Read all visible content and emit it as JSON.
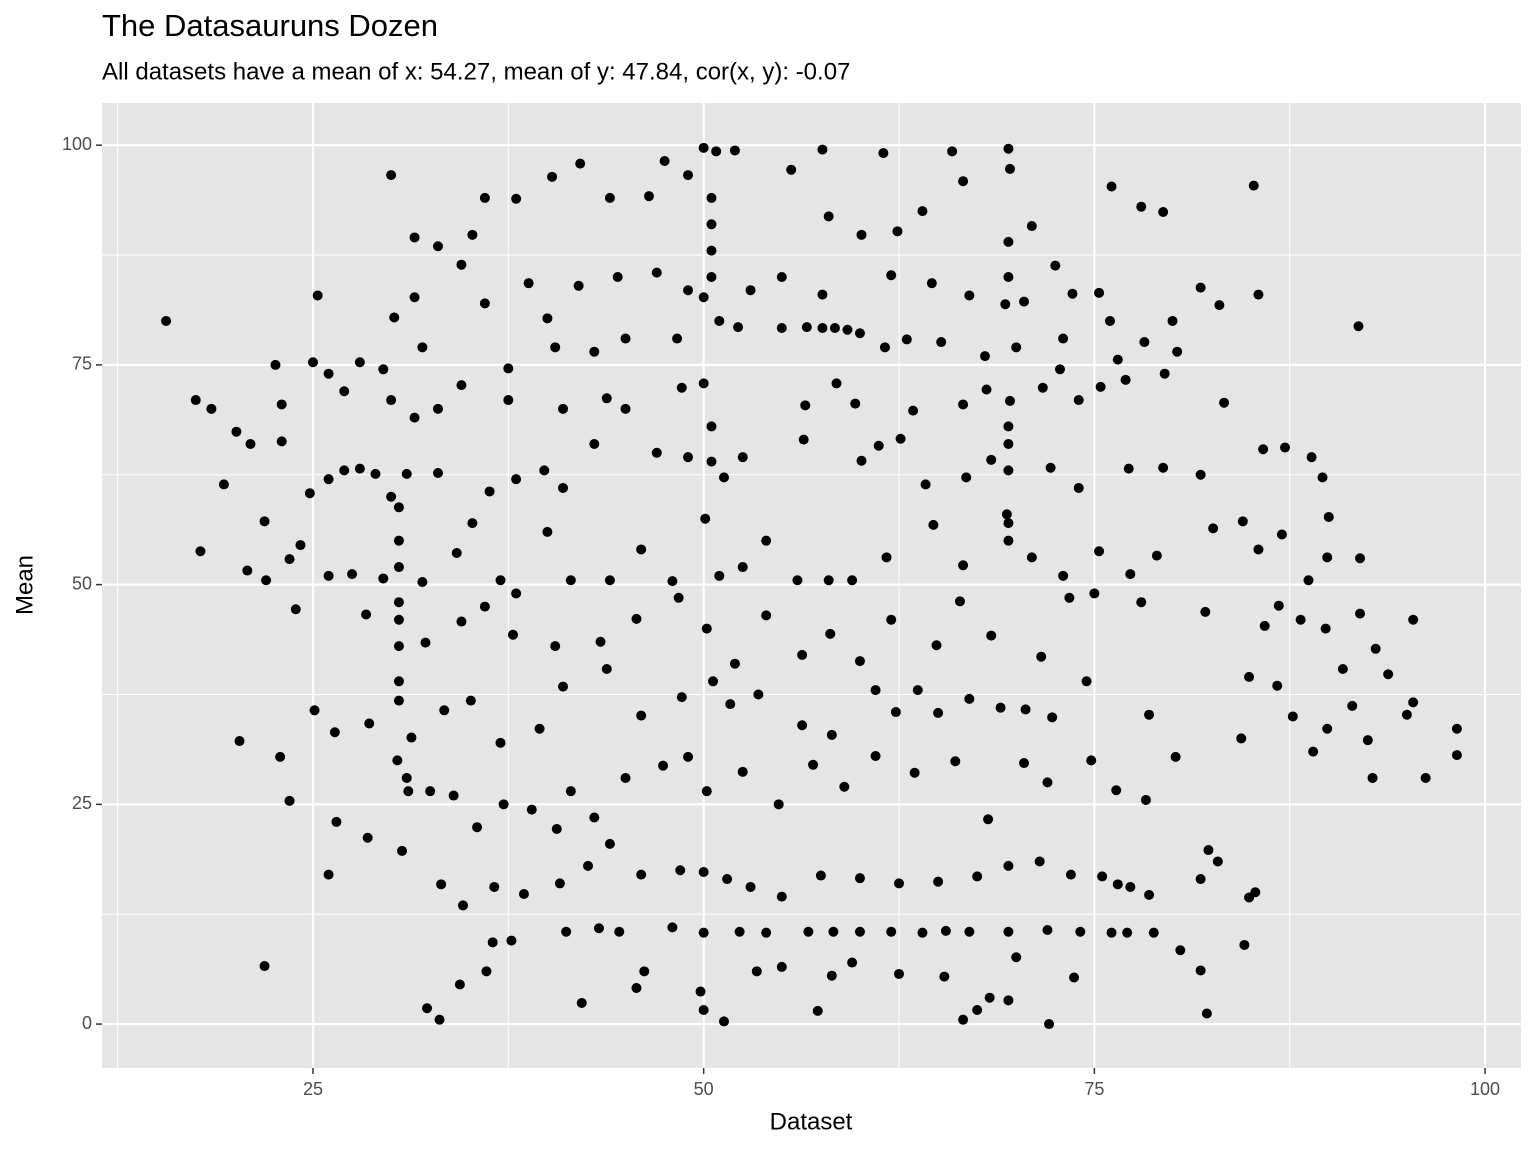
{
  "chart_data": {
    "type": "scatter",
    "title": "The Datasauruns Dozen",
    "subtitle": "All datasets have a mean of x: 54.27, mean of y: 47.84, cor(x, y): -0.07",
    "x_label": "Dataset",
    "y_label": "Mean",
    "color": "#000000",
    "xlim": [
      11.5,
      102.3
    ],
    "ylim": [
      -5.0,
      104.8
    ],
    "xticks": [
      25,
      50,
      75,
      100
    ],
    "yticks": [
      0,
      25,
      50,
      75,
      100
    ],
    "xminor": [
      12.5,
      37.5,
      62.5,
      87.5
    ],
    "yminor": [
      12.5,
      37.5,
      62.5,
      87.5
    ],
    "grid": true,
    "x": [
      15.6,
      17.5,
      17.8,
      21.9,
      20.3,
      23.5,
      85.2,
      91.9,
      98.2,
      98.2,
      96.2,
      95.4,
      95.4,
      30,
      42.1,
      50,
      50.8,
      52,
      55.6,
      57.6,
      61.5,
      65.9,
      69.5,
      69.6,
      76.1,
      78,
      79.4,
      36,
      38,
      40.3,
      44,
      46.5,
      47.5,
      49,
      58,
      60.1,
      62.4,
      64,
      66.6,
      71,
      72.5,
      34.5,
      31.5,
      33,
      35.2,
      25.3,
      30.2,
      31.5,
      36,
      38.8,
      40,
      42,
      44.5,
      47,
      49,
      50,
      51,
      53,
      55,
      57.6,
      60,
      62,
      64.6,
      67,
      69.3,
      70.5,
      73.6,
      75.3,
      76,
      80,
      81.8,
      83,
      85.5,
      22.6,
      25,
      26,
      28,
      29.5,
      32,
      37.5,
      40.5,
      43,
      45,
      48.3,
      52.2,
      55,
      56.6,
      57.6,
      58.4,
      59.2,
      61.6,
      63,
      65.2,
      68,
      70,
      73,
      76.5,
      78.2,
      80.3,
      18.5,
      23,
      27,
      30,
      31.5,
      33,
      34.5,
      37.5,
      41,
      43.8,
      45,
      48.6,
      50,
      56.5,
      58.5,
      59.7,
      63.4,
      66.6,
      68.1,
      69.6,
      71.7,
      72.8,
      74,
      75.4,
      77,
      79.5,
      83.3,
      20.1,
      21,
      23,
      24.8,
      26,
      27,
      28,
      29,
      30,
      31,
      33,
      36.3,
      38,
      39.8,
      41,
      43,
      47,
      49,
      51.3,
      52.5,
      56.4,
      60.1,
      61.2,
      62.6,
      64.2,
      66.8,
      68.4,
      69.5,
      72.2,
      74,
      77.2,
      79.4,
      81.8,
      85.8,
      87.2,
      88.9,
      89.6,
      19.3,
      21.9,
      20.8,
      22,
      23.5,
      24.2,
      26,
      27.5,
      29.5,
      30.5,
      32,
      34.2,
      35.2,
      37,
      38,
      40,
      41.5,
      44,
      46,
      48,
      50.1,
      51,
      52.5,
      54,
      56,
      58,
      59.5,
      61.7,
      64.7,
      66.6,
      69.4,
      71,
      73,
      75.3,
      77.3,
      79,
      82.6,
      84.5,
      85.5,
      87,
      88.7,
      89.9,
      92,
      90,
      23.9,
      28.4,
      30.5,
      32.2,
      34.5,
      36,
      37.8,
      40.5,
      43.4,
      45.7,
      48.4,
      50.2,
      52,
      54,
      56.3,
      58.1,
      60,
      62,
      64.9,
      66.4,
      68.4,
      71.6,
      73.4,
      75,
      78,
      82.1,
      85.9,
      86.8,
      88.2,
      89.8,
      90.9,
      92,
      93,
      25.1,
      26.4,
      28.6,
      30.4,
      31.3,
      33.4,
      35.1,
      37,
      39.5,
      41,
      43.8,
      46,
      48.6,
      50.6,
      51.7,
      53.5,
      56.3,
      58.2,
      61,
      62.3,
      63.7,
      65,
      67,
      69,
      70.6,
      72.3,
      74.5,
      78.5,
      84.9,
      86.7,
      87.7,
      89.9,
      91.5,
      92.5,
      93.8,
      95,
      22.9,
      26.5,
      28.5,
      30.7,
      31.1,
      32.5,
      34,
      35.5,
      37.2,
      39,
      40.6,
      41.5,
      43,
      45,
      47.4,
      49,
      50.2,
      52.5,
      54.8,
      57,
      59,
      61,
      63.5,
      66.1,
      68.2,
      70.5,
      72,
      74.8,
      76.4,
      78.3,
      80.2,
      84.4,
      89,
      92.8,
      26,
      31,
      33.2,
      34.6,
      36.6,
      38.5,
      40.8,
      42.6,
      44,
      46,
      48.5,
      50,
      51.5,
      53,
      55,
      57.5,
      60,
      62.5,
      65,
      67.5,
      69.5,
      71.5,
      73.5,
      75.5,
      76.5,
      77.3,
      78.5,
      81.8,
      82.3,
      82.9,
      85.3,
      84.9,
      41.2,
      44.6,
      48,
      50,
      52.3,
      54,
      56.7,
      58.3,
      60,
      62,
      64,
      65.5,
      67,
      69.5,
      72,
      74.1,
      76.1,
      77.1,
      78.8,
      80.5,
      81.8,
      82.2,
      32.3,
      33.1,
      34.4,
      36.1,
      42.2,
      45.7,
      46.2,
      49.8,
      50,
      51.3,
      53.4,
      55,
      57.3,
      58.2,
      59.5,
      62.5,
      65.4,
      66.6,
      67.5,
      68.3,
      69.5,
      70,
      72.1,
      73.7,
      84.6,
      36.5,
      37.7,
      43.3,
      30.5,
      30.5,
      30.5,
      30.5,
      30.5,
      30.5,
      50.5,
      50.5,
      50.5,
      50.5,
      50.5,
      50.5,
      69.5,
      69.5,
      69.5,
      69.5,
      69.5,
      69.5
    ],
    "y": [
      80,
      71,
      53.8,
      6.6,
      32.2,
      25.4,
      95.4,
      79.4,
      33.6,
      30.6,
      28,
      46,
      36.6,
      96.6,
      97.9,
      99.7,
      99.3,
      99.4,
      97.2,
      99.5,
      99.1,
      99.3,
      99.6,
      97.3,
      95.3,
      93,
      92.4,
      94,
      93.9,
      96.4,
      94,
      94.2,
      98.2,
      96.6,
      91.9,
      89.8,
      90.2,
      92.5,
      95.9,
      90.8,
      86.3,
      86.4,
      89.5,
      88.5,
      89.8,
      82.9,
      80.4,
      82.7,
      82,
      84.3,
      80.3,
      84,
      85,
      85.5,
      83.5,
      82.7,
      80,
      83.5,
      85,
      83,
      78.6,
      85.2,
      84.3,
      82.9,
      81.9,
      82.2,
      83.1,
      83.2,
      80,
      80,
      83.8,
      81.8,
      83,
      75,
      75.3,
      74,
      75.3,
      74.5,
      77,
      74.6,
      77,
      76.5,
      78,
      78,
      79.3,
      79.2,
      79.3,
      79.2,
      79.2,
      79,
      77,
      77.9,
      77.6,
      76,
      77,
      78,
      75.6,
      77.6,
      76.5,
      70,
      70.5,
      72,
      71,
      69,
      70,
      72.7,
      71,
      70,
      71.2,
      70,
      72.4,
      72.9,
      70.4,
      72.9,
      70.6,
      69.8,
      70.5,
      72.2,
      70.9,
      72.4,
      74.5,
      71,
      72.5,
      73.3,
      74,
      70.7,
      67.4,
      66,
      66.3,
      60.4,
      62,
      63,
      63.2,
      62.6,
      60,
      62.6,
      62.7,
      60.6,
      62,
      63,
      61,
      66,
      65,
      64.5,
      62.2,
      64.5,
      66.5,
      64.1,
      65.8,
      66.6,
      61.4,
      62.2,
      64.2,
      63,
      63.3,
      61,
      63.2,
      63.3,
      62.5,
      65.4,
      65.6,
      64.5,
      62.2,
      61.4,
      57.2,
      51.6,
      50.5,
      52.9,
      54.5,
      51,
      51.2,
      50.7,
      52,
      50.3,
      53.6,
      57,
      50.5,
      49,
      56,
      50.5,
      50.5,
      54,
      50.4,
      57.5,
      51,
      52,
      55,
      50.5,
      50.5,
      50.5,
      53.1,
      56.8,
      52.2,
      58,
      53.1,
      51,
      53.8,
      51.2,
      53.3,
      56.4,
      57.2,
      54,
      55.7,
      50.5,
      53.1,
      53,
      57.7,
      47.2,
      46.6,
      46,
      43.4,
      45.8,
      47.5,
      44.3,
      43,
      43.5,
      46.1,
      48.5,
      45,
      41,
      46.5,
      42,
      44.4,
      41.3,
      46,
      43.1,
      48.1,
      44.2,
      41.8,
      48.5,
      49,
      48,
      46.9,
      45.3,
      47.6,
      46,
      45,
      40.4,
      46.7,
      42.7,
      35.7,
      33.2,
      34.2,
      30,
      32.6,
      35.7,
      36.8,
      32,
      33.6,
      38.4,
      40.4,
      35.1,
      37.2,
      39,
      36.4,
      37.5,
      34,
      32.9,
      38,
      35.5,
      38,
      35.4,
      37,
      36,
      35.8,
      34.9,
      39,
      35.2,
      39.5,
      38.5,
      35,
      33.6,
      36.2,
      32.3,
      39.8,
      35.2,
      30.4,
      23,
      21.2,
      19.7,
      26.5,
      26.5,
      26,
      22.4,
      25,
      24.4,
      22.2,
      26.5,
      23.5,
      28,
      29.4,
      30.4,
      26.5,
      28.7,
      25,
      29.5,
      27,
      30.5,
      28.6,
      29.9,
      23.3,
      29.7,
      27.5,
      30,
      26.6,
      25.5,
      30.4,
      32.5,
      31,
      28,
      17,
      28,
      15.9,
      13.5,
      15.6,
      14.8,
      16,
      18,
      20.5,
      17,
      17.5,
      17.3,
      16.5,
      15.6,
      14.5,
      16.9,
      16.6,
      16,
      16.2,
      16.8,
      18,
      18.5,
      17,
      16.8,
      15.9,
      15.6,
      14.7,
      16.5,
      19.8,
      18.5,
      15,
      14.4,
      10.5,
      10.5,
      11,
      10.4,
      10.5,
      10.4,
      10.5,
      10.5,
      10.5,
      10.5,
      10.4,
      10.6,
      10.5,
      10.5,
      10.7,
      10.5,
      10.4,
      10.4,
      10.4,
      8.4,
      6.1,
      1.2,
      1.8,
      0.5,
      4.5,
      6,
      2.4,
      4.1,
      6,
      3.7,
      1.6,
      0.3,
      6,
      6.5,
      1.5,
      5.5,
      7,
      5.7,
      5.4,
      0.5,
      1.6,
      3,
      2.7,
      7.6,
      0,
      5.3,
      9,
      9.3,
      9.5,
      10.9,
      36.8,
      39,
      43,
      48,
      55,
      58.8,
      85,
      88,
      91,
      94,
      68,
      64,
      57,
      55,
      66,
      68,
      85,
      89
    ]
  }
}
